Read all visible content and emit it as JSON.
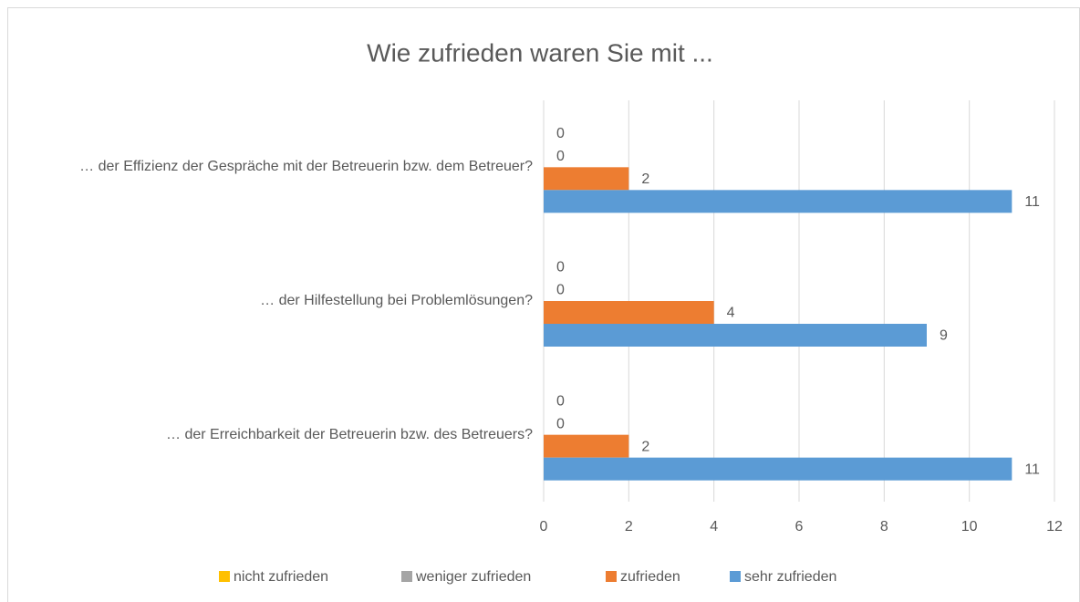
{
  "chart_data": {
    "type": "hbar",
    "title": "Wie zufrieden waren Sie mit ...",
    "categories": [
      "… der Effizienz der Gespräche mit der Betreuerin bzw. dem Betreuer?",
      "… der Hilfestellung bei Problemlösungen?",
      "… der Erreichbarkeit der Betreuerin bzw. des Betreuers?"
    ],
    "series": [
      {
        "name": "nicht zufrieden",
        "color": "#ffc000",
        "values": [
          0,
          0,
          0
        ]
      },
      {
        "name": "weniger zufrieden",
        "color": "#a5a5a5",
        "values": [
          0,
          0,
          0
        ]
      },
      {
        "name": "zufrieden",
        "color": "#ed7d31",
        "values": [
          2,
          4,
          2
        ]
      },
      {
        "name": "sehr zufrieden",
        "color": "#5b9bd5",
        "values": [
          11,
          9,
          11
        ]
      }
    ],
    "xlim": [
      0,
      12
    ],
    "xticks": [
      0,
      2,
      4,
      6,
      8,
      10,
      12
    ],
    "grid": true,
    "legend": "bottom"
  }
}
